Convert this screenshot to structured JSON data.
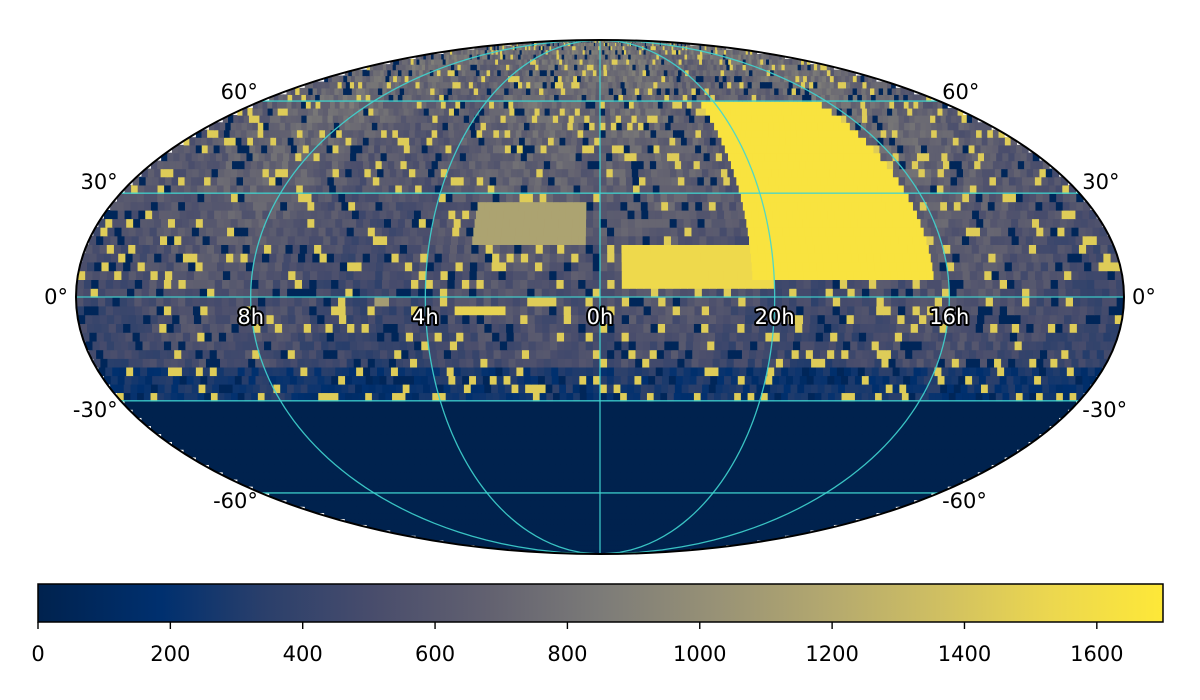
{
  "chart_data": {
    "type": "heatmap",
    "projection": "mollweide",
    "colormap": "cividis",
    "colors": {
      "low": "#00224e",
      "mid": "#7c7b78",
      "high": "#fee838",
      "graticule": "#3fd5d0",
      "outline": "#000000"
    },
    "grid": true,
    "ra_labels": [
      "8h",
      "4h",
      "0h",
      "20h",
      "16h"
    ],
    "ra_values_hours": [
      8,
      4,
      0,
      20,
      16
    ],
    "dec_labels_left": [
      "60°",
      "30°",
      "0°",
      "-30°",
      "-60°"
    ],
    "dec_labels_right": [
      "60°",
      "30°",
      "0°",
      "-30°",
      "-60°"
    ],
    "dec_values_deg": [
      60,
      30,
      0,
      -30,
      -60
    ],
    "colorbar": {
      "orientation": "horizontal",
      "placement": "bottom",
      "range": [
        0,
        1700
      ],
      "ticks": [
        0,
        200,
        400,
        600,
        800,
        1000,
        1200,
        1400,
        1600
      ],
      "tick_labels": [
        "0",
        "200",
        "400",
        "600",
        "800",
        "1000",
        "1200",
        "1400",
        "1600"
      ]
    },
    "coverage_dec_limit_deg": -30,
    "regions": [
      {
        "feature": "high-density band",
        "ra_range_h": [
          16.3,
          20.5
        ],
        "dec_range_deg": [
          5,
          60
        ],
        "value": 1650
      },
      {
        "feature": "high-density region",
        "ra_range_h": [
          20.0,
          23.5
        ],
        "dec_range_deg": [
          2,
          15
        ],
        "value": 1550
      },
      {
        "feature": "bright patch",
        "ra_range_h": [
          0.3,
          3.0
        ],
        "dec_range_deg": [
          16,
          28
        ],
        "value": 1150
      },
      {
        "feature": "bright patch",
        "ra_range_h": [
          2.2,
          3.3
        ],
        "dec_range_deg": [
          -6,
          -2
        ],
        "value": 1500
      },
      {
        "feature": "bright patch",
        "ra_range_h": [
          4.9,
          5.2
        ],
        "dec_range_deg": [
          -2,
          1
        ],
        "value": 1100
      },
      {
        "feature": "unobserved south",
        "dec_range_deg": [
          -90,
          -30
        ],
        "value": 0
      }
    ]
  }
}
